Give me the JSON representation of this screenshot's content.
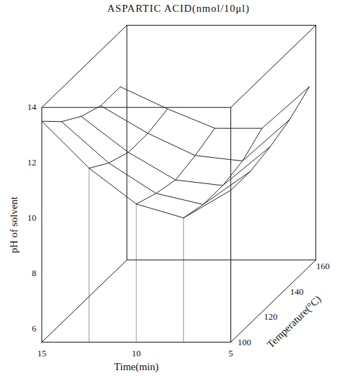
{
  "chart_data": {
    "type": "surface",
    "title": "ASPARTIC ACID(nmol/10μl)",
    "x_label": "Time(min)",
    "y_label": "Temperature(°C)",
    "z_label": "pH of solvent",
    "x": [
      5,
      7.5,
      10,
      12.5,
      15
    ],
    "y": [
      100,
      115,
      130,
      145,
      160
    ],
    "z": [
      [
        11.0,
        10.0,
        10.5,
        11.8,
        13.5
      ],
      [
        11.0,
        9.8,
        10.2,
        11.3,
        12.8
      ],
      [
        11.2,
        9.8,
        10.0,
        11.0,
        12.3
      ],
      [
        11.5,
        10.0,
        10.2,
        11.0,
        12.0
      ],
      [
        12.0,
        10.5,
        10.5,
        11.2,
        12.0
      ]
    ],
    "xlim": [
      15,
      5
    ],
    "xticks": [
      5,
      10,
      15
    ],
    "ylim": [
      100,
      165
    ],
    "yticks": [
      100,
      120,
      140,
      160
    ],
    "zlim": [
      5.5,
      14
    ],
    "zticks": [
      6,
      8,
      10,
      12,
      14
    ],
    "color": "#222222"
  }
}
